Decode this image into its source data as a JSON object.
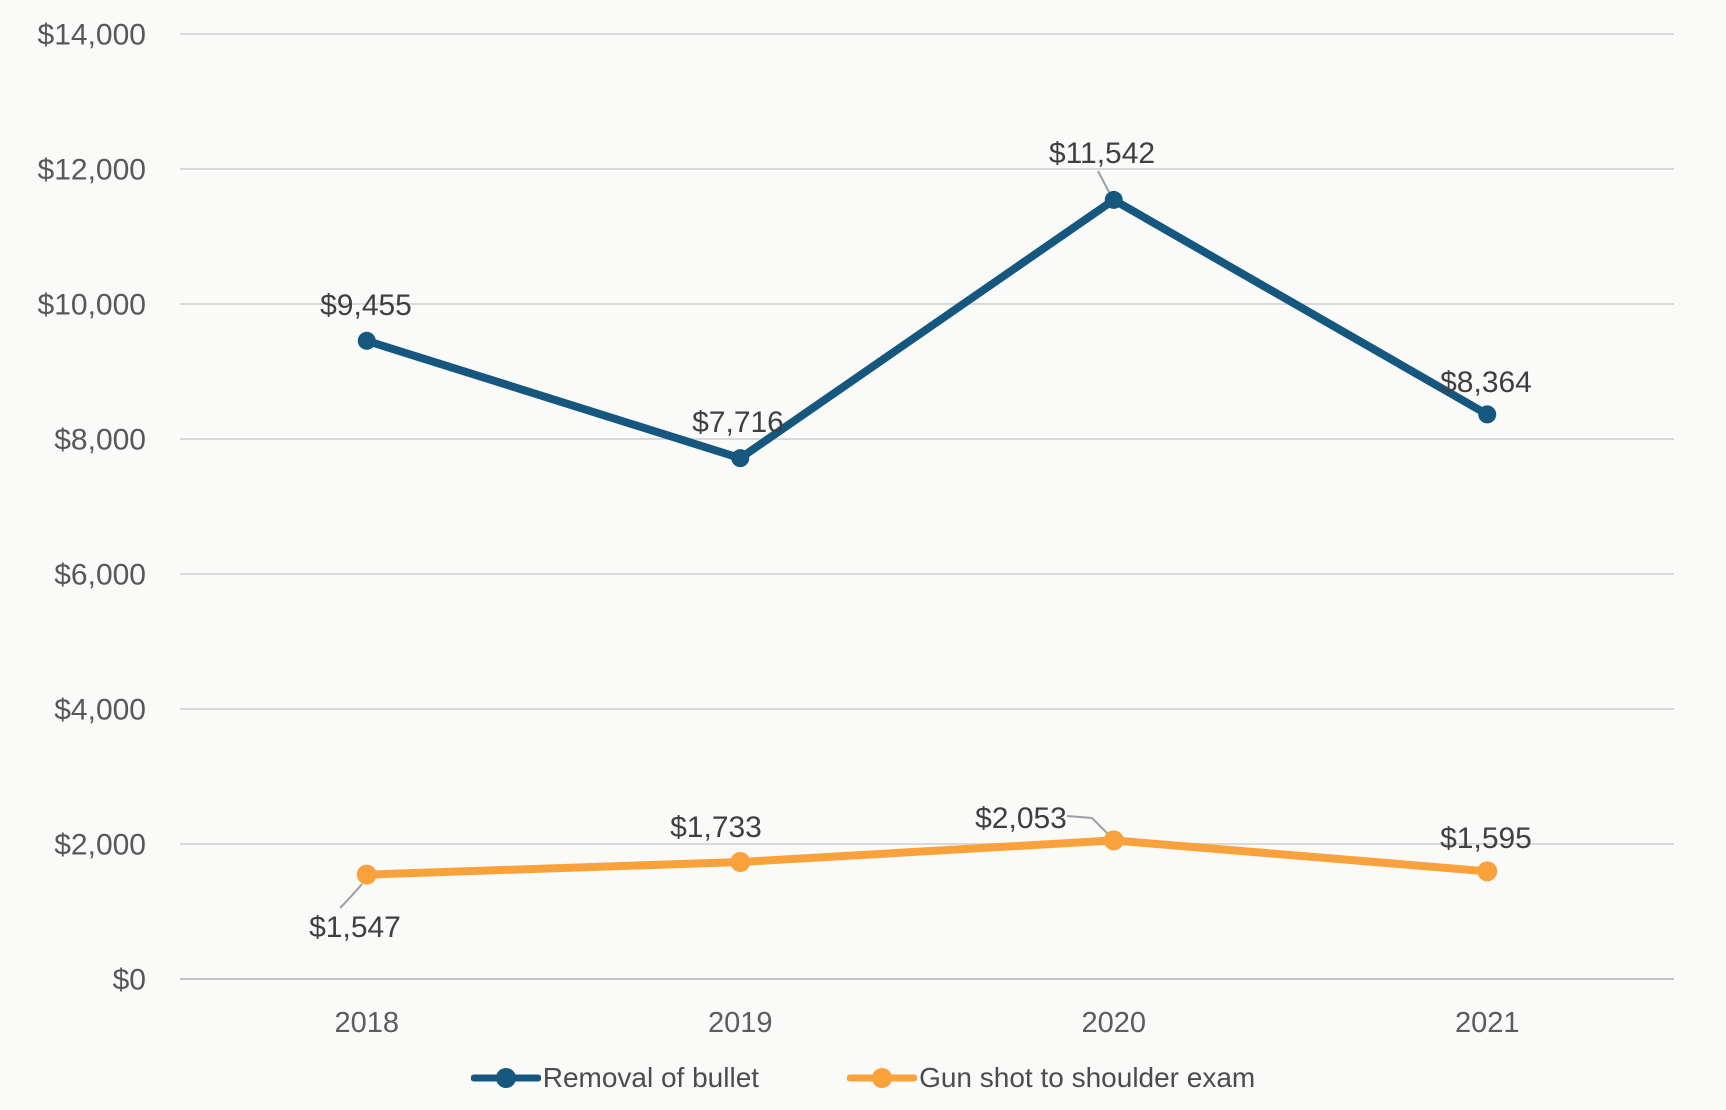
{
  "chart_data": {
    "type": "line",
    "title": "",
    "x_categories": [
      "2018",
      "2019",
      "2020",
      "2021"
    ],
    "series": [
      {
        "name": "Removal of bullet",
        "color": "#15577E",
        "values": [
          9455,
          7716,
          11542,
          8364
        ],
        "data_labels": [
          "$9,455",
          "$7,716",
          "$11,542",
          "$8,364"
        ]
      },
      {
        "name": "Gun shot to shoulder exam",
        "color": "#F9A23C",
        "values": [
          1547,
          1733,
          2053,
          1595
        ],
        "data_labels": [
          "$1,547",
          "$1,733",
          "$2,053",
          "$1,595"
        ]
      }
    ],
    "y_axis": {
      "min": 0,
      "max": 14000,
      "step": 2000,
      "tick_labels": [
        "$0",
        "$2,000",
        "$4,000",
        "$6,000",
        "$8,000",
        "$10,000",
        "$12,000",
        "$14,000"
      ]
    },
    "grid": true,
    "legend_position": "bottom-center"
  },
  "colors": {
    "background": "#FAFAF8",
    "gridline": "#D9D9D9",
    "baseline": "#C2C4C3",
    "y_tick_text": "#57585A",
    "x_tick_text": "#5B5C5E",
    "data_label_text": "#3E3F41",
    "leader_line": "#9AA0A6"
  }
}
